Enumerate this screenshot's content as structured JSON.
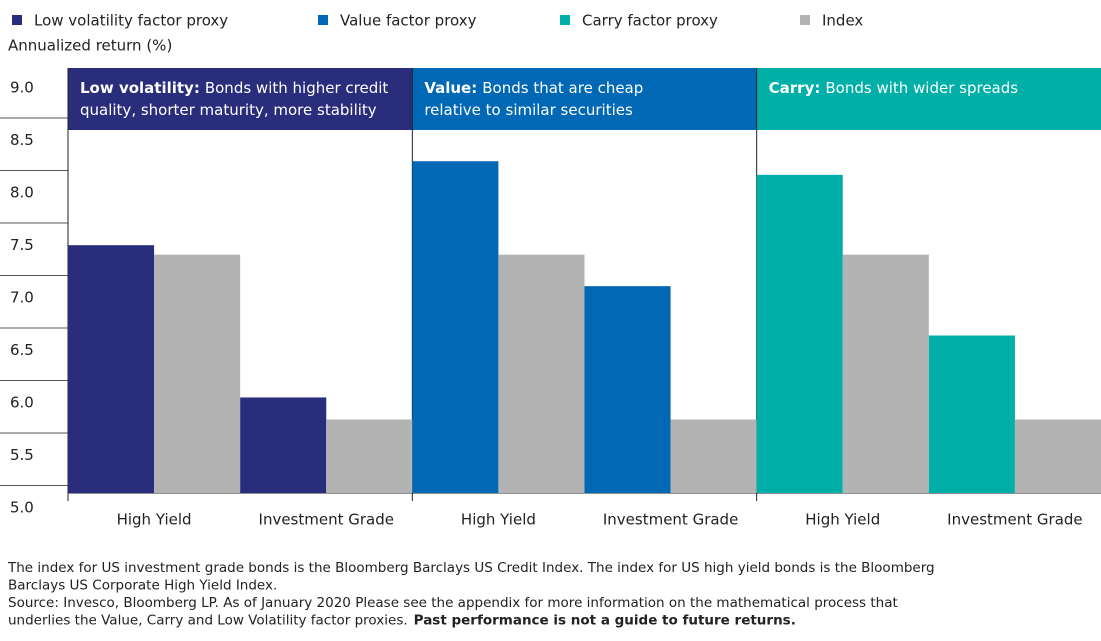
{
  "chart_data": {
    "type": "bar",
    "y_label": "Annualized return (%)",
    "categories": [
      "High Yield",
      "Investment Grade",
      "High Yield",
      "Investment Grade",
      "High Yield",
      "Investment Grade"
    ],
    "series": [
      {
        "name": "Low volatility factor proxy",
        "color": "#2a2d7c",
        "values": [
          7.36,
          5.91,
          null,
          null,
          null,
          null
        ]
      },
      {
        "name": "Value factor proxy",
        "color": "#0068b5",
        "values": [
          null,
          null,
          8.16,
          6.97,
          null,
          null
        ]
      },
      {
        "name": "Carry factor proxy",
        "color": "#00b0a8",
        "values": [
          null,
          null,
          null,
          null,
          8.03,
          6.5
        ]
      },
      {
        "name": "Index",
        "color": "#b3b3b3",
        "values": [
          7.27,
          5.7,
          7.27,
          5.7,
          7.27,
          5.7
        ]
      }
    ],
    "groups": [
      {
        "title": "Low volatility:",
        "lines": [
          "Bonds with higher credit",
          "quality, shorter maturity, more stability"
        ]
      },
      {
        "title": "Value:",
        "lines": [
          "Bonds that are cheap",
          "relative to similar securities"
        ]
      },
      {
        "title": "Carry:",
        "lines": [
          "Bonds with wider spreads"
        ]
      }
    ],
    "ylim": [
      5,
      9
    ],
    "yticks": [
      {
        "value": 5,
        "label": "5.0"
      },
      5.5,
      {
        "value": 6,
        "label": "6.0"
      },
      6.5,
      {
        "value": 7,
        "label": "7.0"
      },
      7.5,
      {
        "value": 8,
        "label": "8.0"
      },
      8.5,
      {
        "value": 9,
        "label": "9.0"
      }
    ],
    "footnotes": [
      "The index for US investment grade bonds is the Bloomberg Barclays US Credit Index. The index for US high yield bonds is the Bloomberg",
      "Barclays US Corporate High Yield Index.",
      "Source: Invesco, Bloomberg LP. As of January 2020 Please see the appendix for more information on the mathematical process that",
      "underlies the Value, Carry and Low Volatility factor proxies."
    ],
    "disclaimer": "Past performance is not a guide to future returns."
  }
}
